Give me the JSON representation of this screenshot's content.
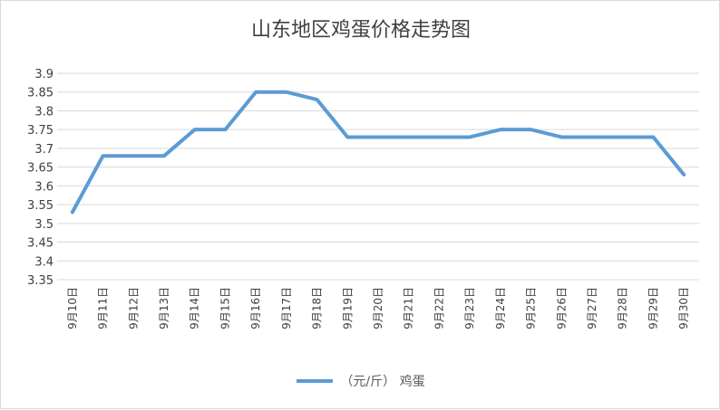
{
  "chart_data": {
    "type": "line",
    "title": "山东地区鸡蛋价格走势图",
    "categories": [
      "9月10日",
      "9月11日",
      "9月12日",
      "9月13日",
      "9月14日",
      "9月15日",
      "9月16日",
      "9月17日",
      "9月18日",
      "9月19日",
      "9月20日",
      "9月21日",
      "9月22日",
      "9月23日",
      "9月24日",
      "9月25日",
      "9月26日",
      "9月27日",
      "9月28日",
      "9月29日",
      "9月30日"
    ],
    "series": [
      {
        "name": "（元/斤） 鸡蛋",
        "color": "#5b9bd5",
        "values": [
          3.53,
          3.68,
          3.68,
          3.68,
          3.75,
          3.75,
          3.85,
          3.85,
          3.83,
          3.73,
          3.73,
          3.73,
          3.73,
          3.73,
          3.75,
          3.75,
          3.73,
          3.73,
          3.73,
          3.73,
          3.63
        ]
      }
    ],
    "ylim": [
      3.35,
      3.9
    ],
    "yticks": [
      "3.35",
      "3.4",
      "3.45",
      "3.5",
      "3.55",
      "3.6",
      "3.65",
      "3.7",
      "3.75",
      "3.8",
      "3.85",
      "3.9"
    ],
    "xlabel": "",
    "ylabel": "",
    "grid": true,
    "legend": "bottom"
  }
}
